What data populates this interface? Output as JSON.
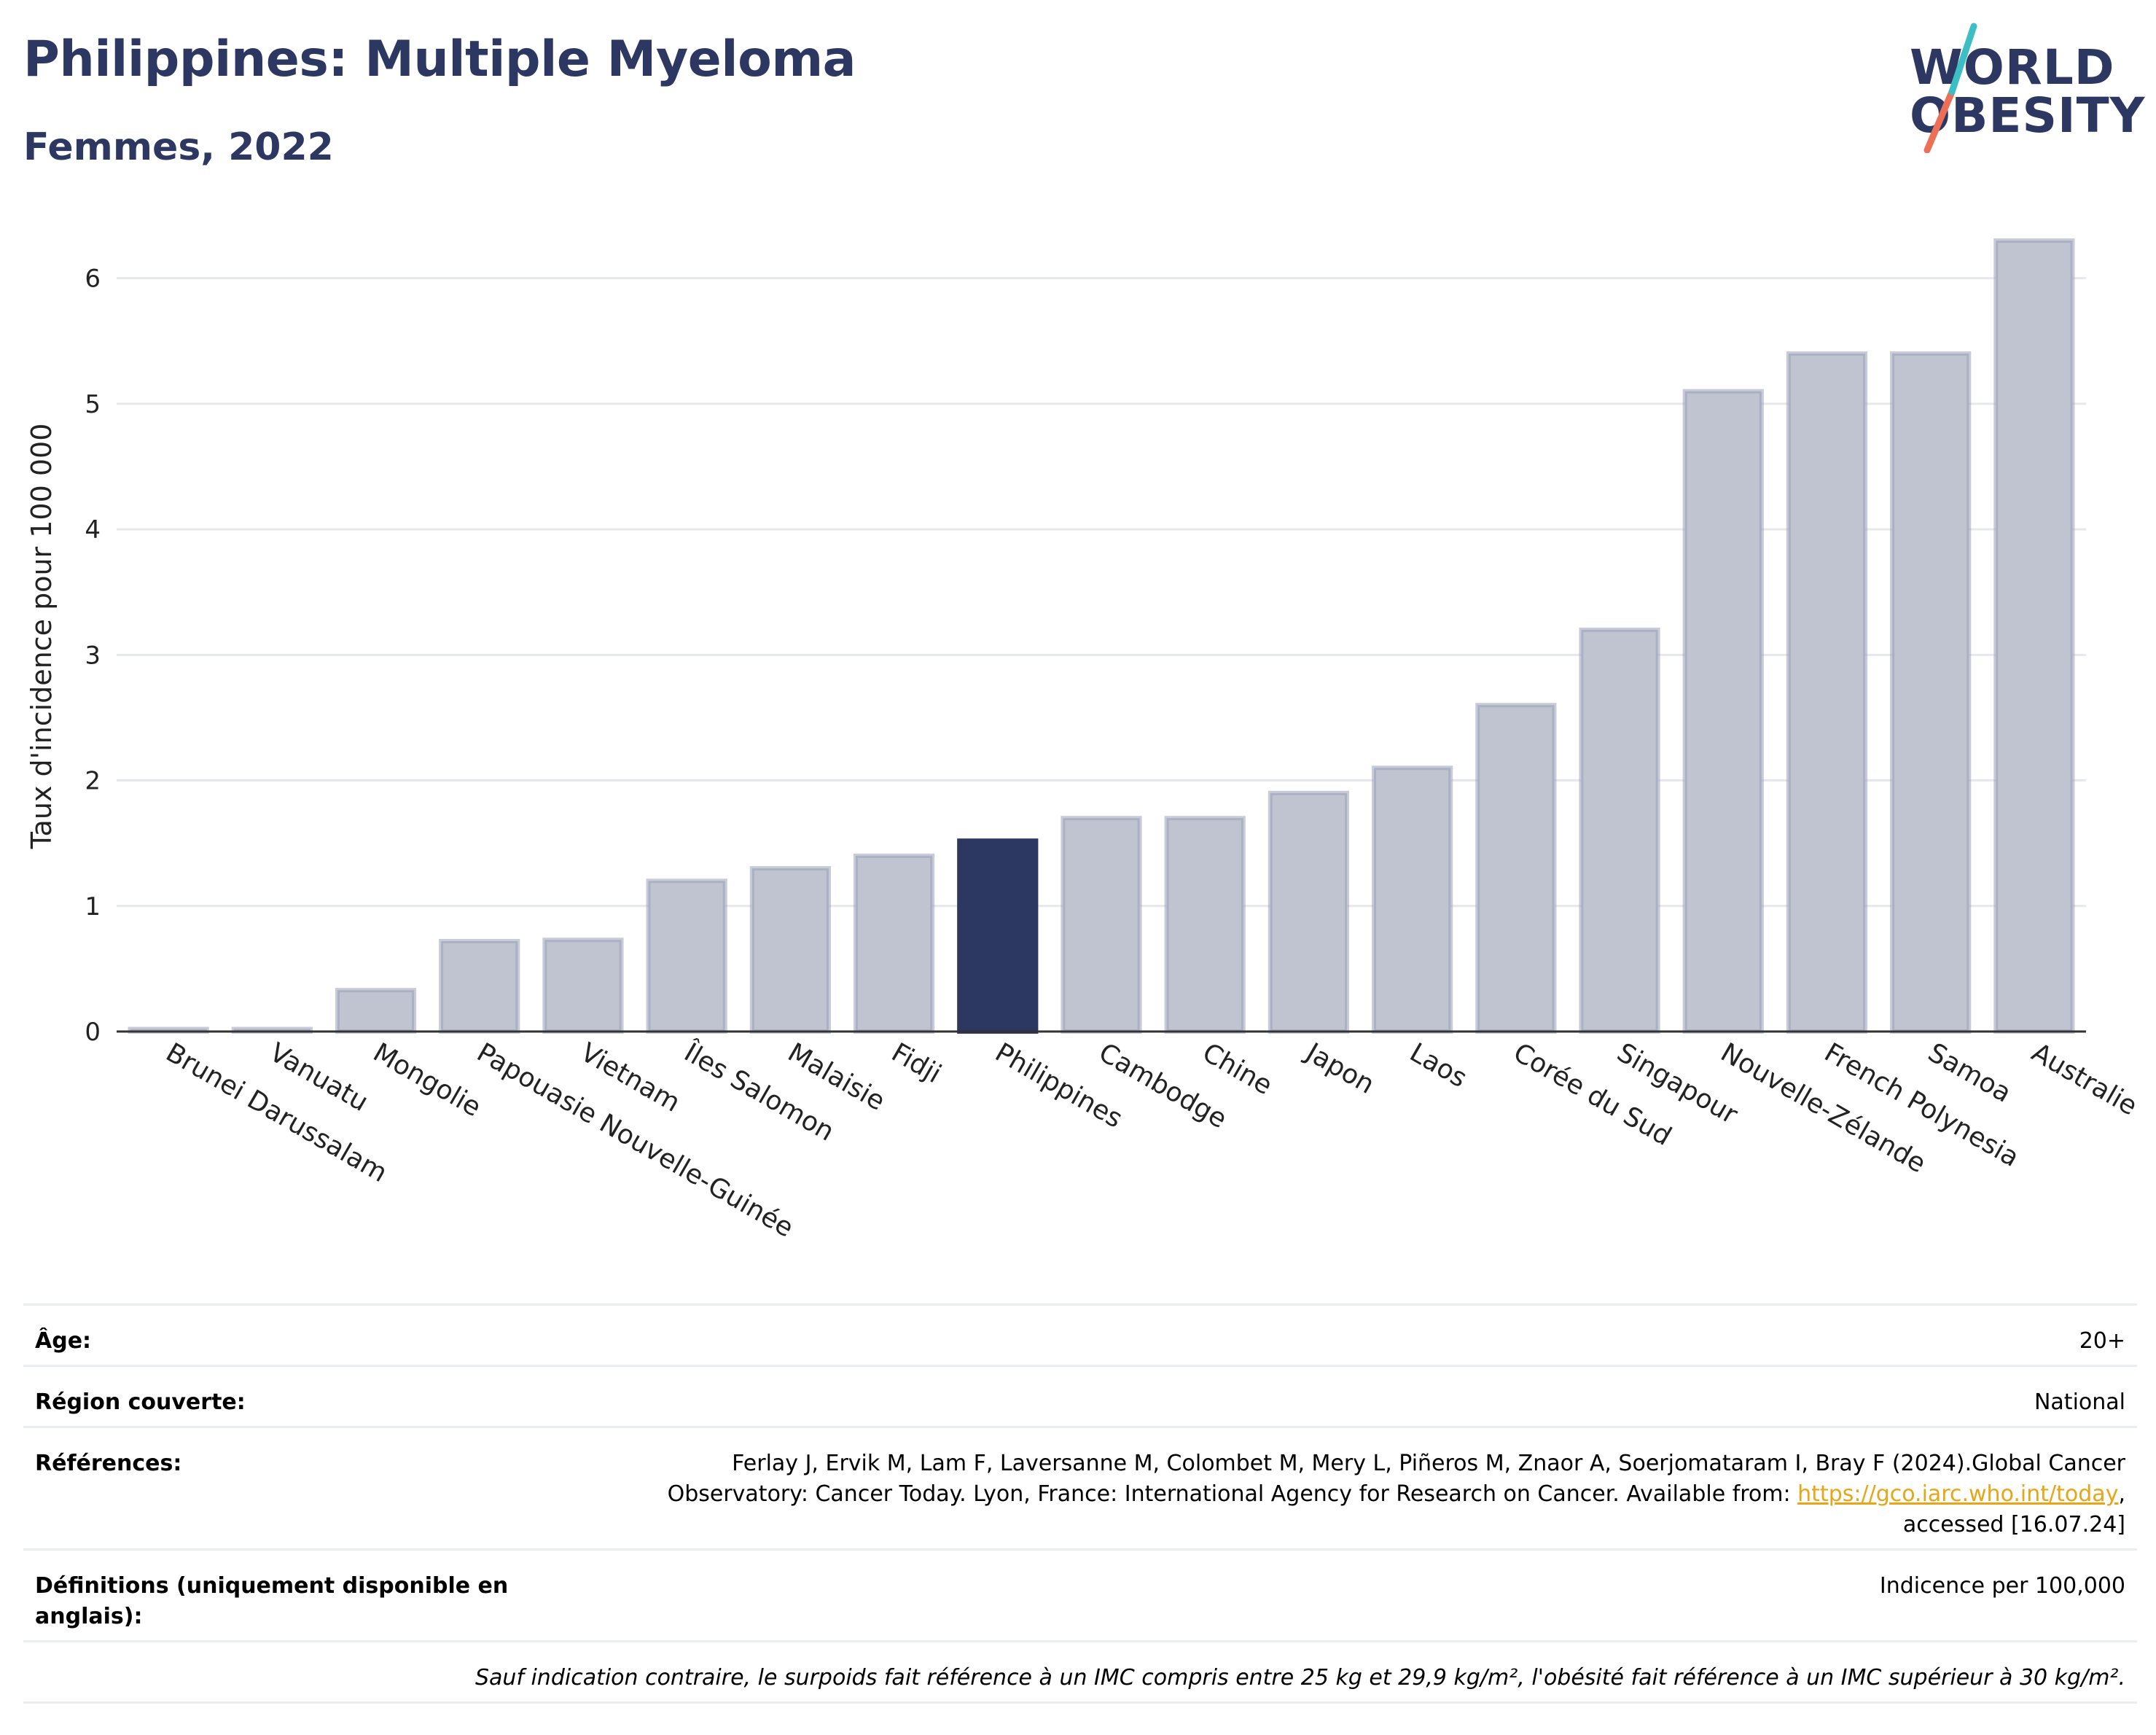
{
  "header": {
    "title": "Philippines: Multiple Myeloma",
    "subtitle": "Femmes, 2022"
  },
  "logo": {
    "line1": "WORLD",
    "line2": "OBESITY"
  },
  "colors": {
    "brand": "#2c3762",
    "bar_muted": "#c0c4d1",
    "bar_muted_stroke": "#9aa1b8",
    "bar_highlight": "#2c3762",
    "grid": "#e6e8ef",
    "link": "#e8a517",
    "logo_teal": "#3cbfc4",
    "logo_coral": "#ee6f57"
  },
  "chart_data": {
    "type": "bar",
    "title": "Philippines: Multiple Myeloma",
    "subtitle": "Femmes, 2022",
    "ylabel": "Taux d'incidence pour 100 000",
    "xlabel": "",
    "ylim": [
      0,
      6.3
    ],
    "yticks": [
      0,
      1,
      2,
      3,
      4,
      5,
      6
    ],
    "grid": true,
    "highlight": "Philippines",
    "categories": [
      "Brunei Darussalam",
      "Vanuatu",
      "Mongolie",
      "Papouasie Nouvelle-Guinée",
      "Vietnam",
      "Îles Salomon",
      "Malaisie",
      "Fidji",
      "Philippines",
      "Cambodge",
      "Chine",
      "Japon",
      "Laos",
      "Corée du Sud",
      "Singapour",
      "Nouvelle-Zélande",
      "French Polynesia",
      "Samoa",
      "Australie"
    ],
    "values": [
      0.02,
      0.02,
      0.33,
      0.72,
      0.73,
      1.2,
      1.3,
      1.4,
      1.52,
      1.7,
      1.7,
      1.9,
      2.1,
      2.6,
      3.2,
      5.1,
      5.4,
      5.4,
      6.3
    ]
  },
  "info": {
    "rows": [
      {
        "label": "Âge:",
        "value": "20+"
      },
      {
        "label": "Région couverte:",
        "value": "National"
      },
      {
        "label": "Références:",
        "value_before": "Ferlay J, Ervik M, Lam F, Laversanne M, Colombet M, Mery L, Piñeros M, Znaor A, Soerjomataram I, Bray F (2024).Global Cancer Observatory: Cancer Today. Lyon, France: International Agency for Research on Cancer. Available from: ",
        "link": "https://gco.iarc.who.int/today",
        "value_after": ", accessed [16.07.24]"
      },
      {
        "label": "Définitions (uniquement disponible en anglais):",
        "value": "Indicence per 100,000"
      }
    ],
    "note": "Sauf indication contraire, le surpoids fait référence à un IMC compris entre 25 kg et 29,9 kg/m², l'obésité fait référence à un IMC supérieur à 30 kg/m²."
  }
}
